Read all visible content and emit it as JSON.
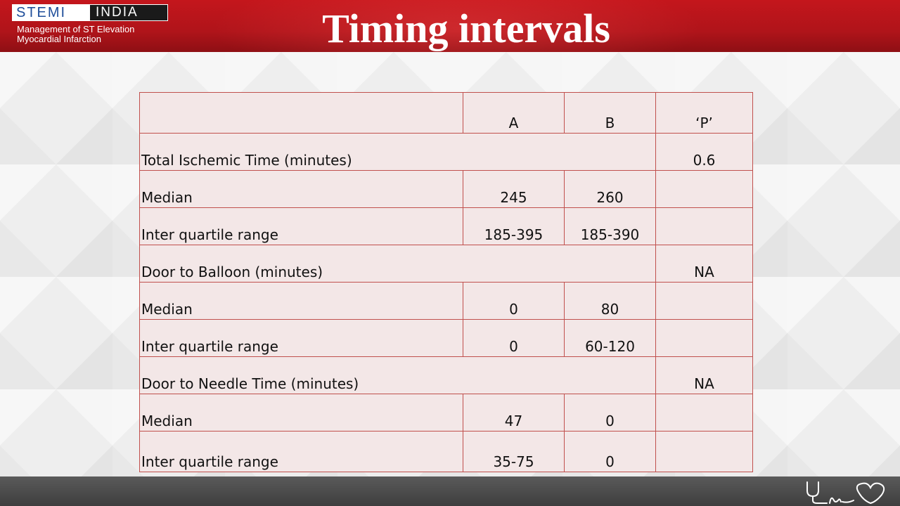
{
  "header": {
    "logo_left": "STEMI",
    "logo_right": "INDIA",
    "logo_sub_line1": "Management of ST Elevation",
    "logo_sub_line2": "Myocardial Infarction",
    "title": "Timing intervals"
  },
  "table": {
    "columns": [
      "",
      "A",
      "B",
      "‘P’"
    ],
    "rows": [
      {
        "type": "section",
        "label": "Total Ischemic Time (minutes)",
        "p": "0.6"
      },
      {
        "type": "data",
        "label": "Median",
        "a": "245",
        "b": "260",
        "p": ""
      },
      {
        "type": "data",
        "label": "Inter quartile range",
        "a": "185-395",
        "b": "185-390",
        "p": ""
      },
      {
        "type": "section",
        "label": "Door to Balloon (minutes)",
        "p": "NA"
      },
      {
        "type": "data",
        "label": "Median",
        "a": "0",
        "b": "80",
        "p": ""
      },
      {
        "type": "data",
        "label": "Inter quartile range",
        "a": "0",
        "b": "60-120",
        "p": ""
      },
      {
        "type": "section",
        "label": "Door to Needle Time (minutes)",
        "p": "NA"
      },
      {
        "type": "data",
        "label": "Median",
        "a": "47",
        "b": "0",
        "p": ""
      },
      {
        "type": "data",
        "label": "Inter quartile range",
        "a": "35-75",
        "b": "0",
        "p": ""
      }
    ]
  },
  "colors": {
    "header_red": "#c4161c",
    "table_border": "#c0504d",
    "table_fill": "#f3e7e7",
    "footer_gray": "#4a4a4a"
  }
}
